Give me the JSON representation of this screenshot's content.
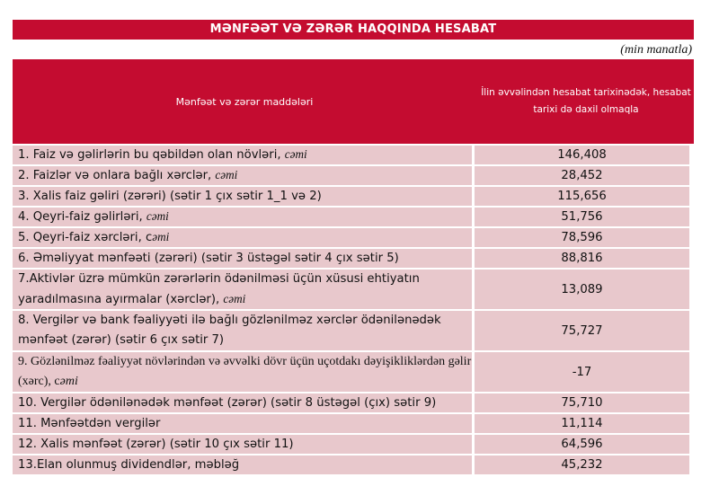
{
  "title": "MƏNFƏƏT VƏ ZƏRƏR HAQQINDA HESABAT",
  "unit": "(min manatla)",
  "header": {
    "col1": "Mənfəət və zərər maddələri",
    "col2": "İlin əvvəlindən hesabat tarixinədək, hesabat tarixi də daxil olmaqla"
  },
  "colors": {
    "header_red": "#c40c30",
    "row_pink": "#e8c8cc"
  },
  "rows": [
    {
      "label": "1. Faiz və gəlirlərin bu qəbildən olan növləri, ",
      "suffix": "cəmi",
      "value": "146,408"
    },
    {
      "label": "2. Faizlər və onlara bağlı xərclər, ",
      "suffix": "cəmi",
      "value": "28,452"
    },
    {
      "label": "3. Xalis faiz gəliri (zərəri) (sətir 1 çıx sətir 1_1 və 2)",
      "suffix": "",
      "value": "115,656"
    },
    {
      "label": "4. Qeyri-faiz gəlirləri, ",
      "suffix": "cəmi",
      "value": "51,756"
    },
    {
      "label": "5. Qeyri-faiz xərcləri, c",
      "suffix": "əmi",
      "value": "78,596"
    },
    {
      "label": "6. Əməliyyat mənfəəti (zərəri) (sətir 3 üstəgəl sətir 4 çıx sətir 5)",
      "suffix": "",
      "value": "88,816"
    },
    {
      "label": "7.Aktivlər üzrə mümkün zərərlərin ödənilməsi üçün xüsusi ehtiyatın yaradılmasına ayırmalar (xərclər), ",
      "suffix": "cəmi",
      "value": "13,089"
    },
    {
      "label": "8. Vergilər və bank fəaliyyəti ilə bağlı gözlənilməz xərclər ödənilənədək mənfəət (zərər) (sətir 6 çıx sətir 7)",
      "suffix": "",
      "value": "75,727"
    },
    {
      "label": "9. Gözlənilməz fəaliyyət növlərindən və əvvəlki dövr üçün uçotdakı dəyişikliklərdən gəlir (xərc), c",
      "suffix": "əmi",
      "value": "-17"
    },
    {
      "label": "10. Vergilər ödənilənədək mənfəət (zərər) (sətir 8 üstəgəl (çıx) sətir 9)",
      "suffix": "",
      "value": "75,710"
    },
    {
      "label": "11. Mənfəətdən vergilər",
      "suffix": "",
      "value": "11,114"
    },
    {
      "label": "12. Xalis mənfəət (zərər) (sətir 10 çıx sətir 11)",
      "suffix": "",
      "value": "64,596"
    },
    {
      "label": "13.Elan olunmuş dividendlər, məbləğ",
      "suffix": "",
      "value": "45,232"
    }
  ]
}
